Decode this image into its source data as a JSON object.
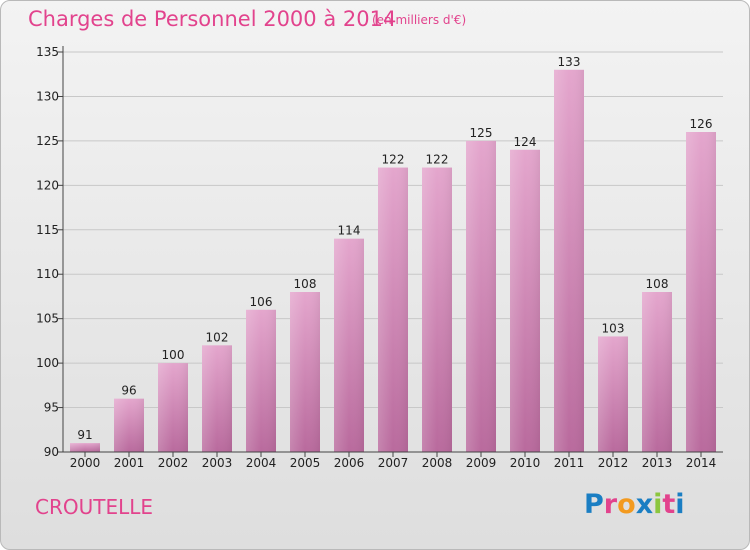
{
  "header": {
    "title": "Charges de Personnel 2000 à 2014",
    "subtitle": "(en milliers d'€)"
  },
  "footer": {
    "place": "CROUTELLE",
    "logo": [
      "P",
      "r",
      "o",
      "x",
      "i",
      "t",
      "i"
    ],
    "logo_colors": [
      "#1a7ec3",
      "#e2438d",
      "#f39a1f",
      "#1a7ec3",
      "#8cc63f",
      "#e2438d",
      "#1a7ec3"
    ]
  },
  "colors": {
    "accent": "#e2438d",
    "bar_top": "#e4a6cd",
    "bar_bottom": "#b96a9d"
  },
  "chart_data": {
    "type": "bar",
    "categories": [
      "2000",
      "2001",
      "2002",
      "2003",
      "2004",
      "2005",
      "2006",
      "2007",
      "2008",
      "2009",
      "2010",
      "2011",
      "2012",
      "2013",
      "2014"
    ],
    "values": [
      91,
      96,
      100,
      102,
      106,
      108,
      114,
      122,
      122,
      125,
      124,
      133,
      103,
      108,
      126
    ],
    "title": "Charges de Personnel 2000 à 2014",
    "xlabel": "",
    "ylabel": "",
    "ylim": [
      90,
      135
    ],
    "yticks": [
      90,
      95,
      100,
      105,
      110,
      115,
      120,
      125,
      130,
      135
    ],
    "grid": true
  }
}
